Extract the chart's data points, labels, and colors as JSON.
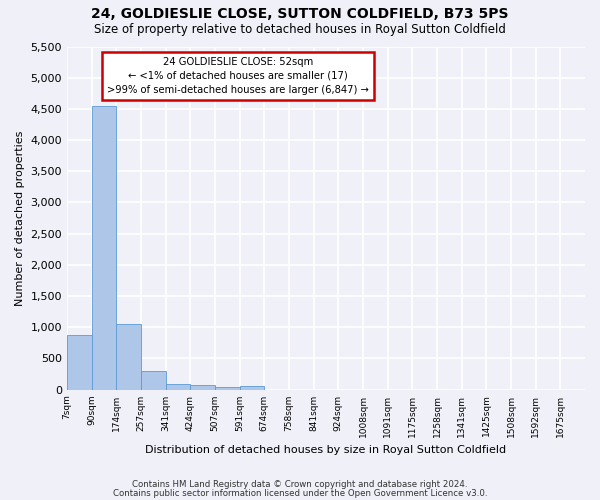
{
  "title": "24, GOLDIESLIE CLOSE, SUTTON COLDFIELD, B73 5PS",
  "subtitle": "Size of property relative to detached houses in Royal Sutton Coldfield",
  "xlabel": "Distribution of detached houses by size in Royal Sutton Coldfield",
  "ylabel": "Number of detached properties",
  "footnote1": "Contains HM Land Registry data © Crown copyright and database right 2024.",
  "footnote2": "Contains public sector information licensed under the Open Government Licence v3.0.",
  "annotation_title": "24 GOLDIESLIE CLOSE: 52sqm",
  "annotation_line2": "← <1% of detached houses are smaller (17)",
  "annotation_line3": ">99% of semi-detached houses are larger (6,847) →",
  "bar_color": "#aec6e8",
  "bar_edge_color": "#5b9bd5",
  "bin_labels": [
    "7sqm",
    "90sqm",
    "174sqm",
    "257sqm",
    "341sqm",
    "424sqm",
    "507sqm",
    "591sqm",
    "674sqm",
    "758sqm",
    "841sqm",
    "924sqm",
    "1008sqm",
    "1091sqm",
    "1175sqm",
    "1258sqm",
    "1341sqm",
    "1425sqm",
    "1508sqm",
    "1592sqm",
    "1675sqm"
  ],
  "counts": [
    880,
    4550,
    1060,
    295,
    88,
    68,
    48,
    55,
    0,
    0,
    0,
    0,
    0,
    0,
    0,
    0,
    0,
    0,
    0,
    0,
    0
  ],
  "ylim": [
    0,
    5500
  ],
  "yticks": [
    0,
    500,
    1000,
    1500,
    2000,
    2500,
    3000,
    3500,
    4000,
    4500,
    5000,
    5500
  ],
  "background_color": "#eff0f8",
  "grid_color": "#ffffff",
  "annotation_box_facecolor": "#ffffff",
  "annotation_box_edge": "#cc0000"
}
